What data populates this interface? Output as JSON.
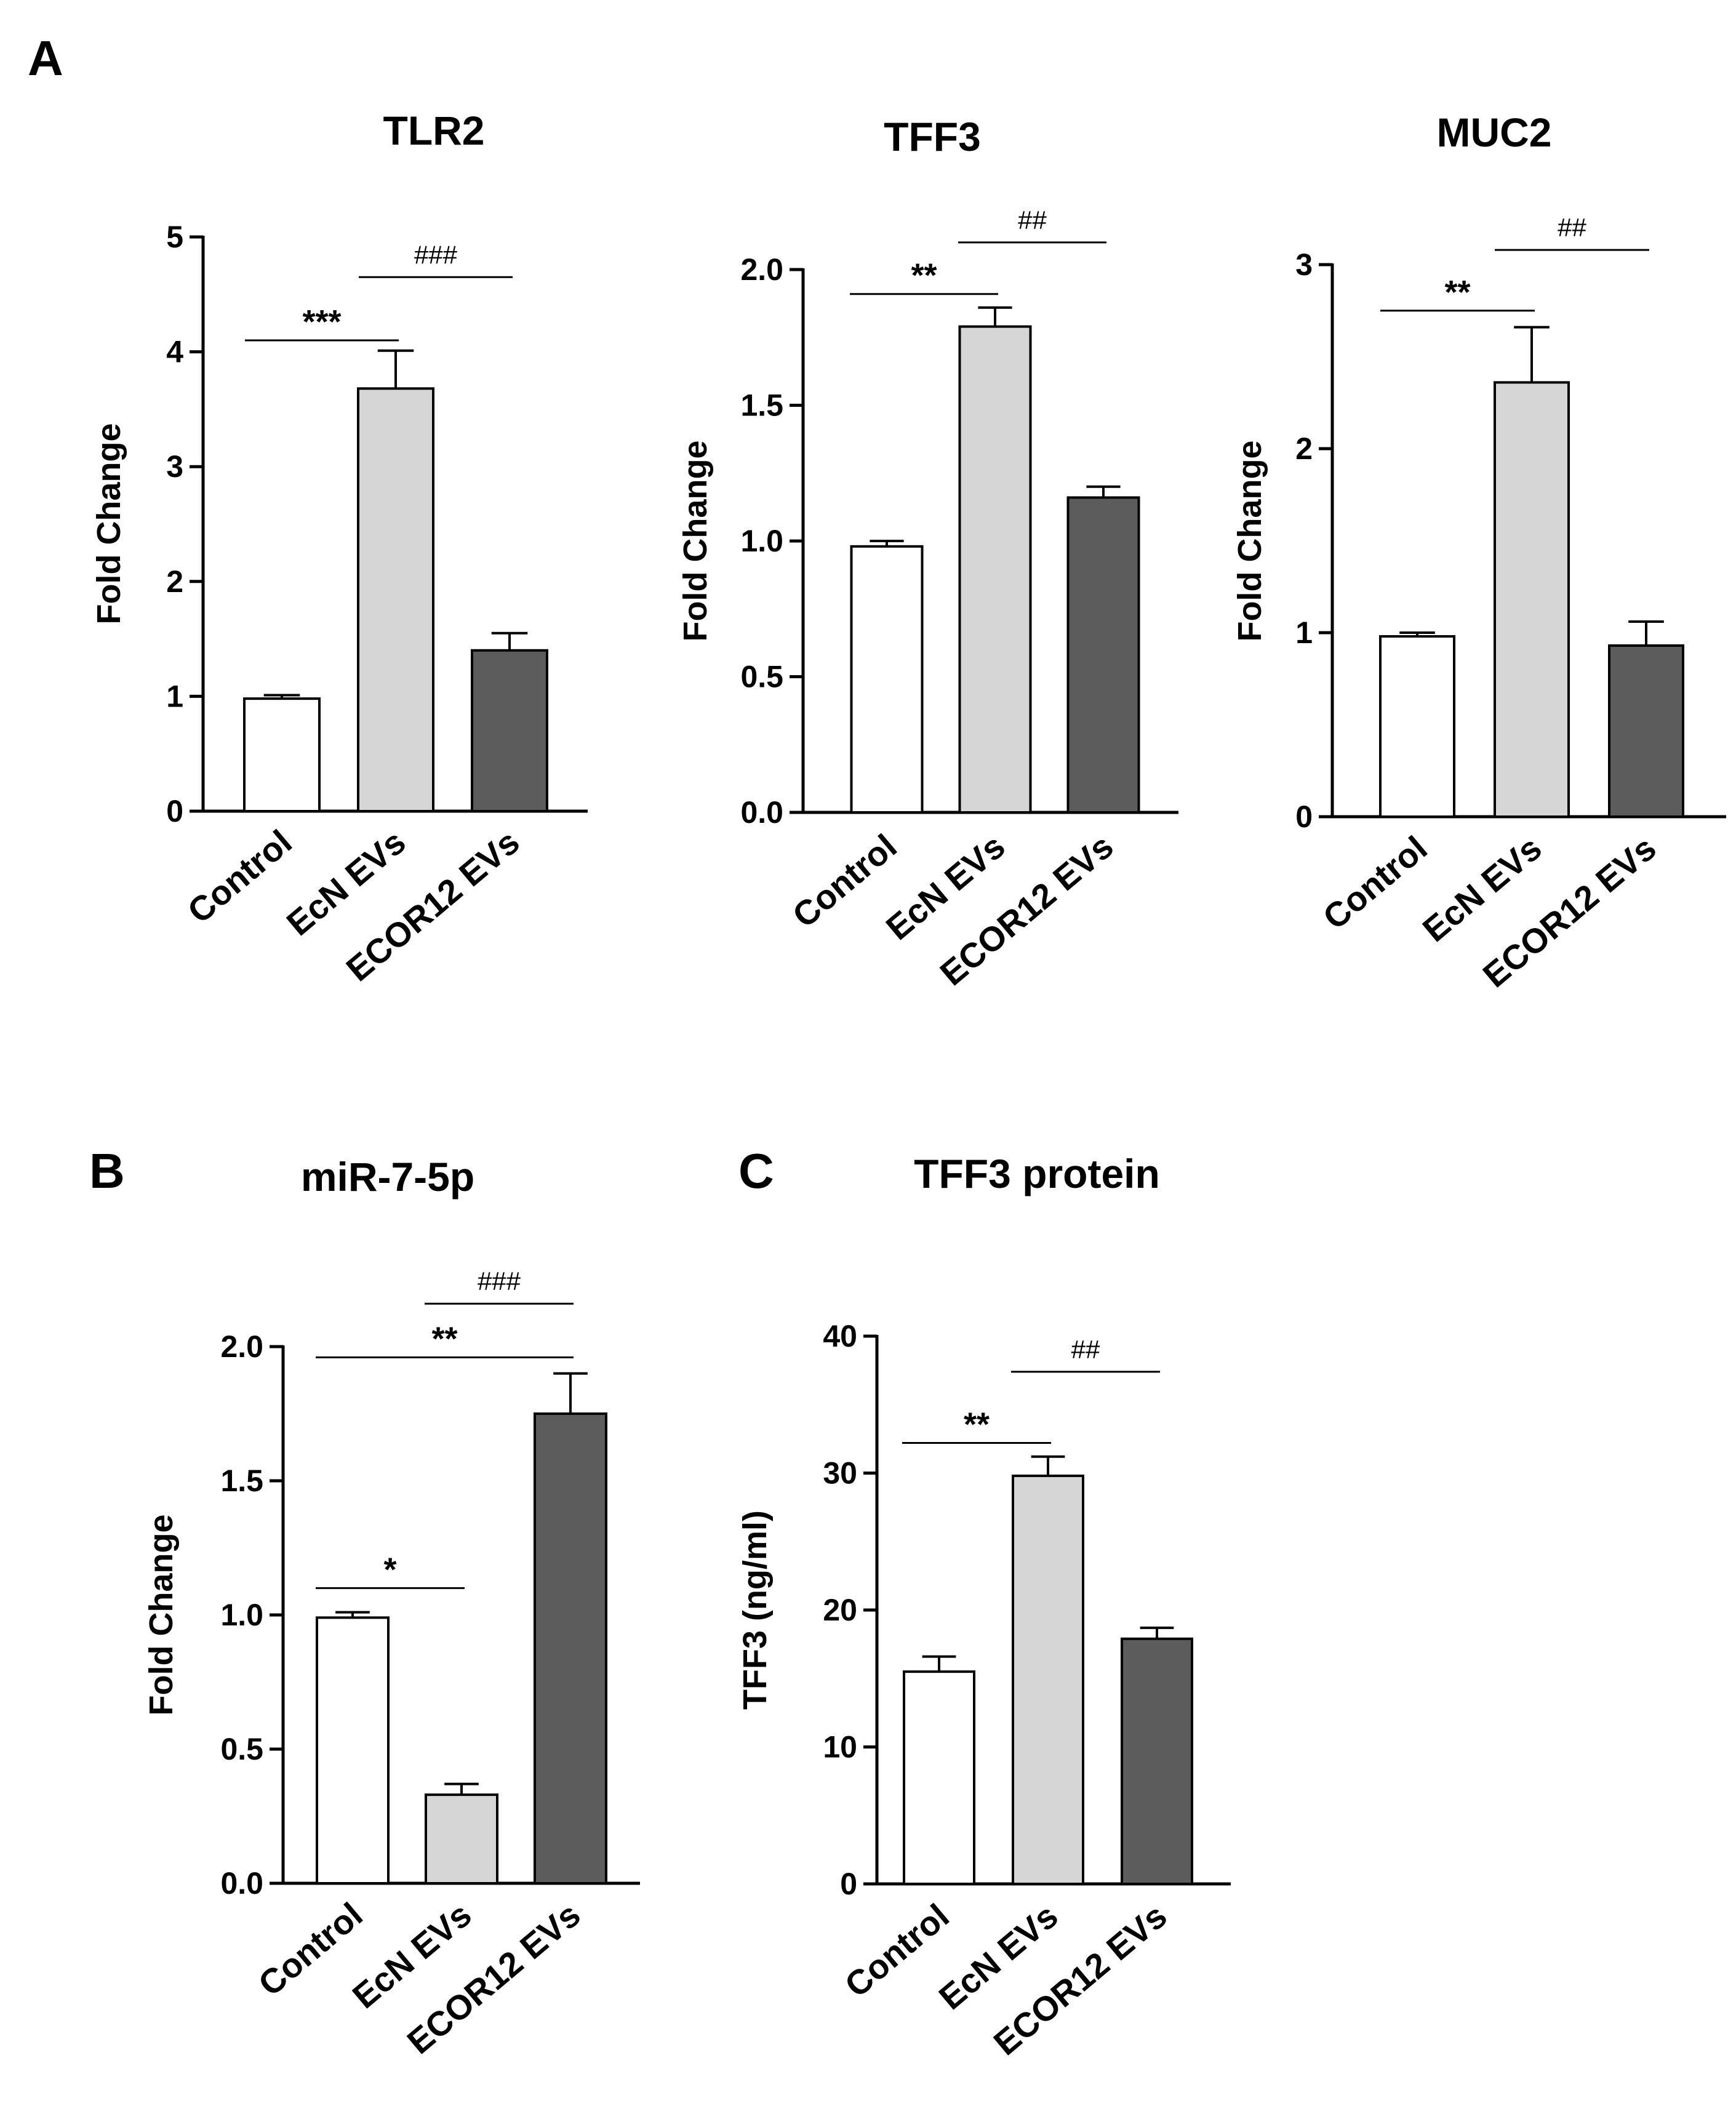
{
  "panels": [
    {
      "letter": "A"
    },
    {
      "letter": "B"
    },
    {
      "letter": "C"
    }
  ],
  "categories": [
    "Control",
    "EcN EVs",
    "ECOR12 EVs"
  ],
  "colors": {
    "bar_fills": [
      "#ffffff",
      "#d6d6d6",
      "#5c5c5c"
    ],
    "stroke": "#000000"
  },
  "chart_data": [
    {
      "type": "bar",
      "panel": "A",
      "title": "TLR2",
      "ylabel": "Fold Change",
      "categories": [
        "Control",
        "EcN EVs",
        "ECOR12 EVs"
      ],
      "values": [
        0.98,
        3.68,
        1.4
      ],
      "errors": [
        0.03,
        0.33,
        0.15
      ],
      "ylim": [
        0,
        5
      ],
      "yticks": [
        "0",
        "1",
        "2",
        "3",
        "4",
        "5"
      ],
      "grid": false,
      "annotations": [
        {
          "label": "***",
          "from": 0,
          "to": 1,
          "y": 4.1
        },
        {
          "label": "###",
          "from": 1,
          "to": 2,
          "y": 4.65
        }
      ]
    },
    {
      "type": "bar",
      "panel": "A",
      "title": "TFF3",
      "ylabel": "Fold Change",
      "categories": [
        "Control",
        "EcN EVs",
        "ECOR12 EVs"
      ],
      "values": [
        0.98,
        1.79,
        1.16
      ],
      "errors": [
        0.02,
        0.07,
        0.04
      ],
      "ylim": [
        0,
        2.0
      ],
      "yticks": [
        "0.0",
        "0.5",
        "1.0",
        "1.5",
        "2.0"
      ],
      "grid": false,
      "annotations": [
        {
          "label": "**",
          "from": 0,
          "to": 1,
          "y": 1.91
        },
        {
          "label": "##",
          "from": 1,
          "to": 2,
          "y": 2.1
        }
      ]
    },
    {
      "type": "bar",
      "panel": "A",
      "title": "MUC2",
      "ylabel": "Fold Change",
      "categories": [
        "Control",
        "EcN EVs",
        "ECOR12 EVs"
      ],
      "values": [
        0.98,
        2.36,
        0.93
      ],
      "errors": [
        0.02,
        0.3,
        0.13
      ],
      "ylim": [
        0,
        3
      ],
      "yticks": [
        "0",
        "1",
        "2",
        "3"
      ],
      "grid": false,
      "annotations": [
        {
          "label": "**",
          "from": 0,
          "to": 1,
          "y": 2.75
        },
        {
          "label": "##",
          "from": 1,
          "to": 2,
          "y": 3.08
        }
      ]
    },
    {
      "type": "bar",
      "panel": "B",
      "title": "miR-7-5p",
      "ylabel": "Fold Change",
      "categories": [
        "Control",
        "EcN EVs",
        "ECOR12 EVs"
      ],
      "values": [
        0.99,
        0.33,
        1.75
      ],
      "errors": [
        0.02,
        0.04,
        0.15
      ],
      "ylim": [
        0,
        2.0
      ],
      "yticks": [
        "0.0",
        "0.5",
        "1.0",
        "1.5",
        "2.0"
      ],
      "grid": false,
      "annotations": [
        {
          "label": "*",
          "from": 0,
          "to": 1,
          "y": 1.1
        },
        {
          "label": "**",
          "from": 0,
          "to": 2,
          "y": 1.96
        },
        {
          "label": "###",
          "from": 1,
          "to": 2,
          "y": 2.16
        }
      ]
    },
    {
      "type": "bar",
      "panel": "C",
      "title": "TFF3 protein",
      "ylabel": "TFF3 (ng/ml)",
      "categories": [
        "Control",
        "EcN EVs",
        "ECOR12 EVs"
      ],
      "values": [
        15.5,
        29.8,
        17.9
      ],
      "errors": [
        1.1,
        1.4,
        0.8
      ],
      "ylim": [
        0,
        40
      ],
      "yticks": [
        "0",
        "10",
        "20",
        "30",
        "40"
      ],
      "grid": false,
      "annotations": [
        {
          "label": "**",
          "from": 0,
          "to": 1,
          "y": 32.2
        },
        {
          "label": "##",
          "from": 1,
          "to": 2,
          "y": 37.4
        }
      ]
    }
  ]
}
